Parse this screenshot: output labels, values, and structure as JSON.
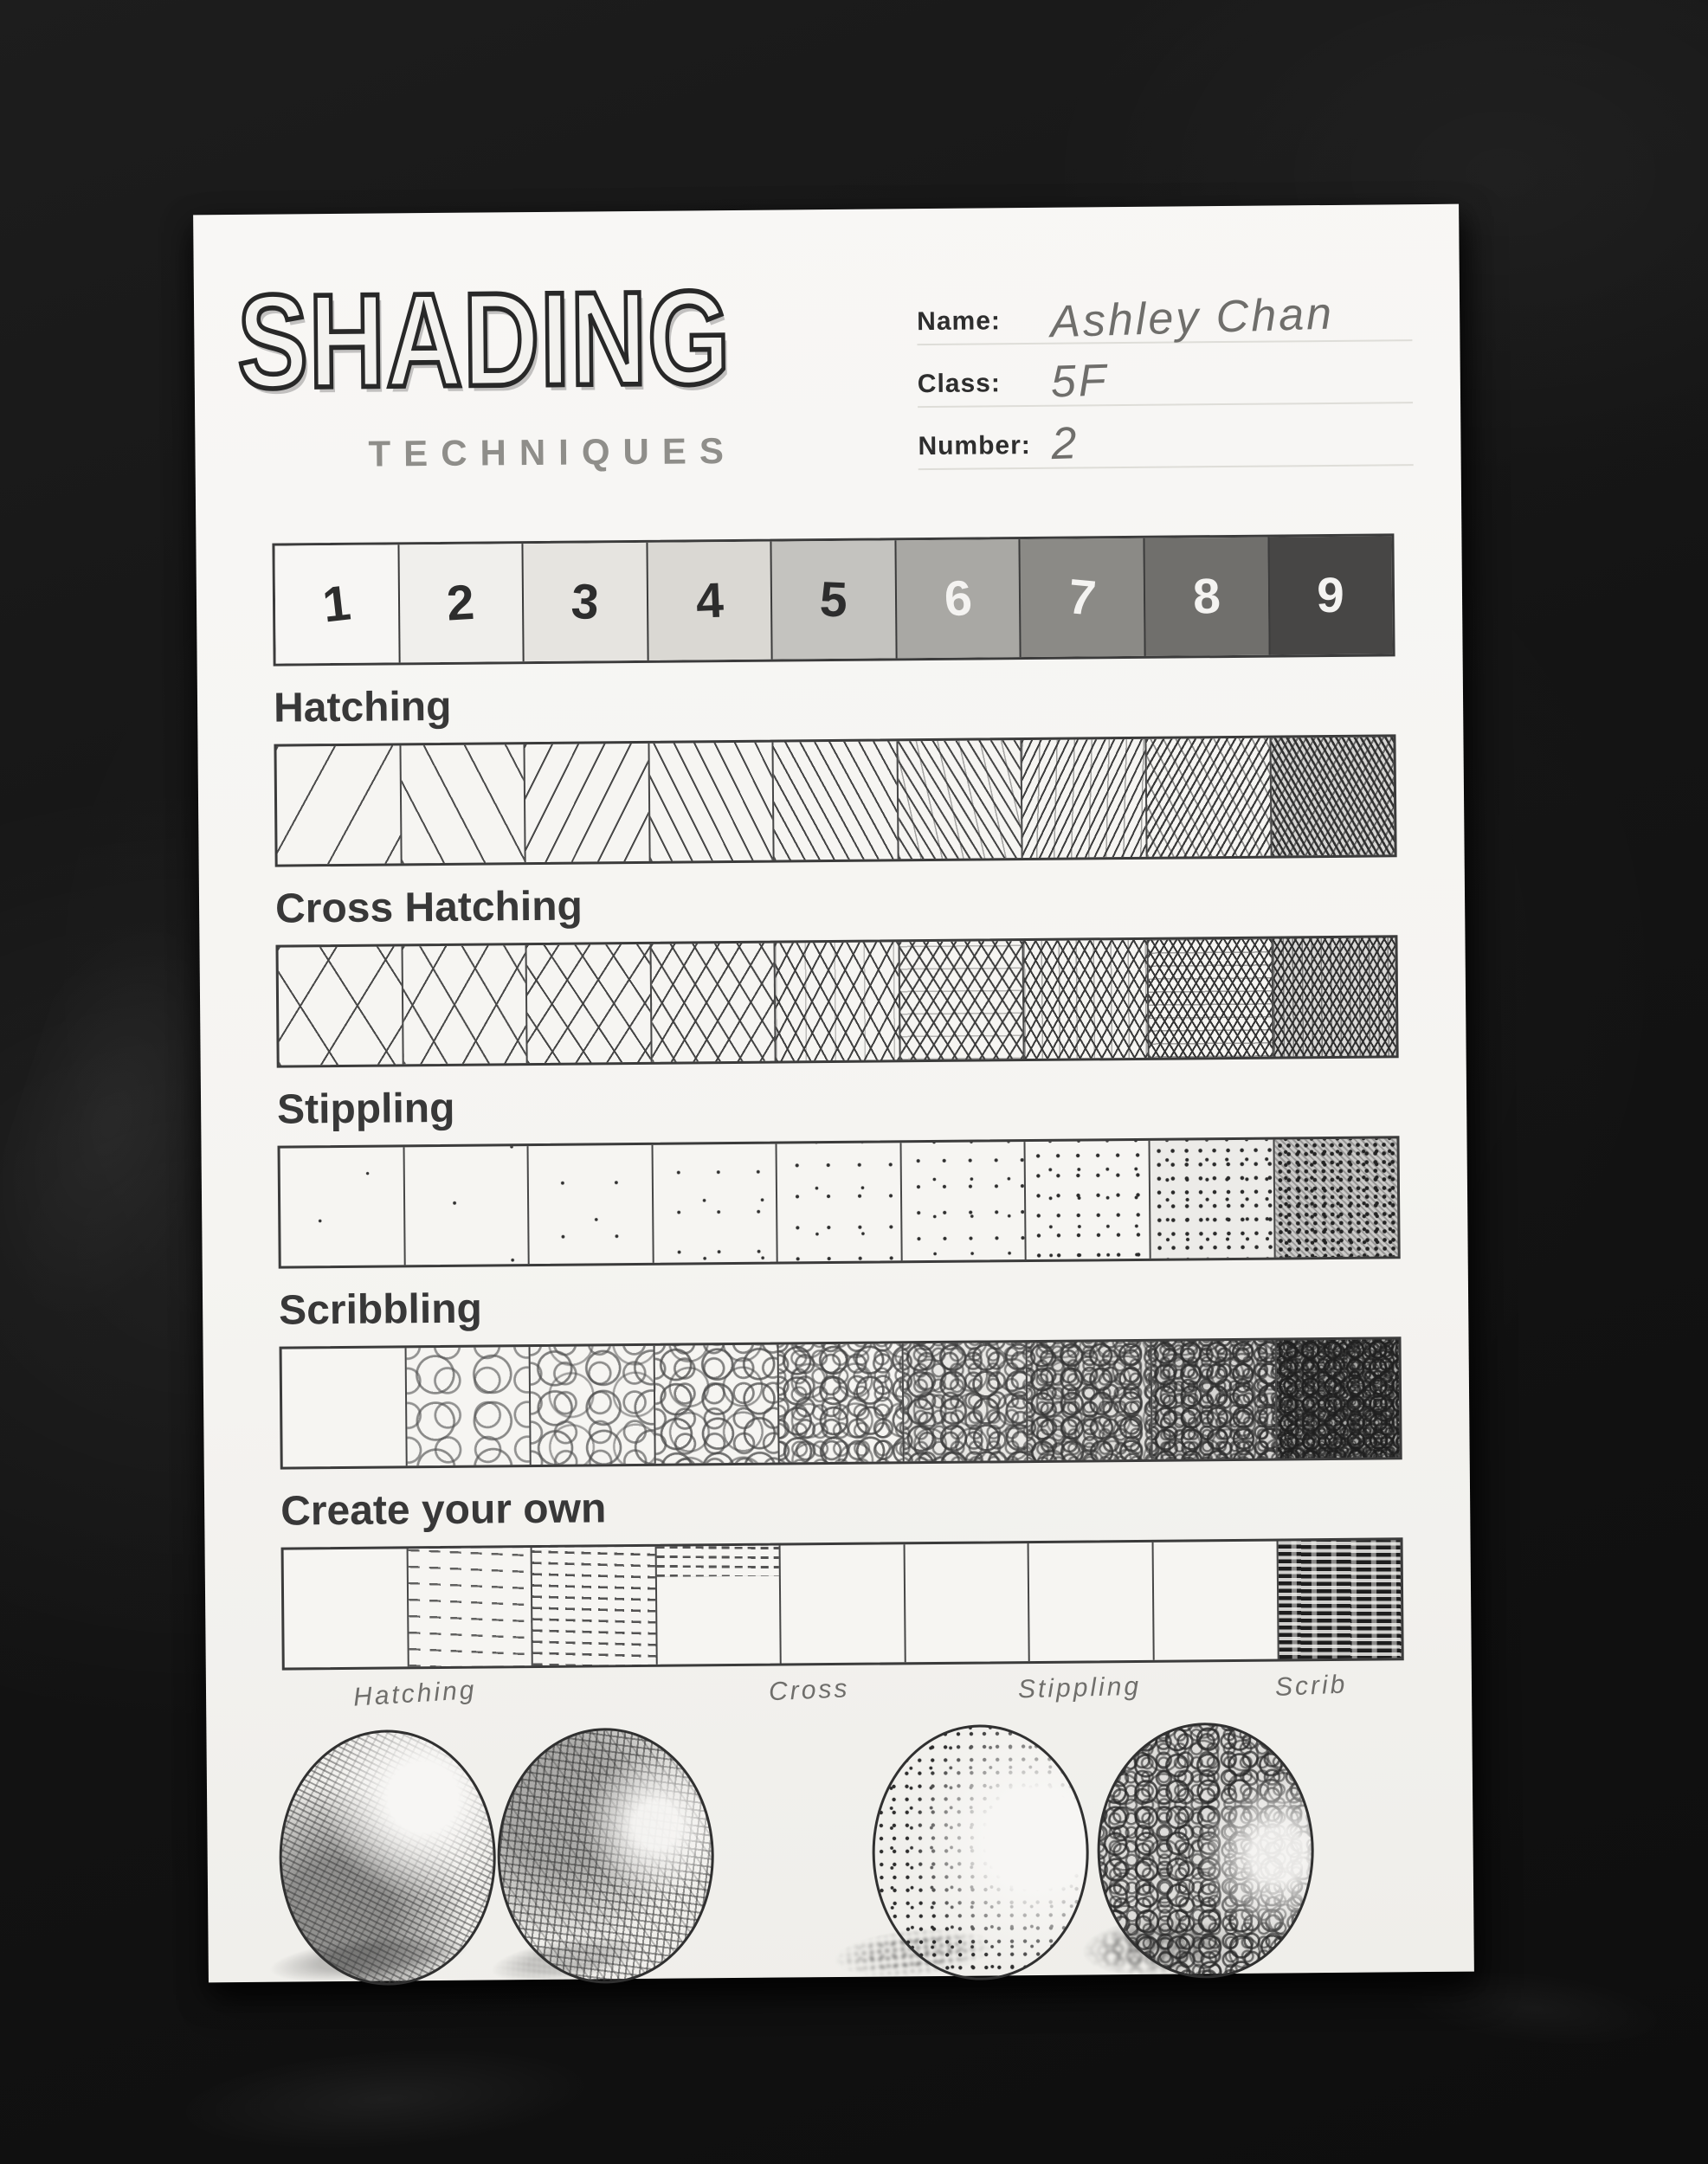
{
  "worksheet": {
    "title": "SHADING",
    "subtitle": "TECHNIQUES",
    "fields": [
      {
        "label": "Name:",
        "value": "Ashley Chan"
      },
      {
        "label": "Class:",
        "value": "5F"
      },
      {
        "label": "Number:",
        "value": "2"
      }
    ],
    "value_scale": {
      "numbers": [
        "1",
        "2",
        "3",
        "4",
        "5",
        "6",
        "7",
        "8",
        "9"
      ],
      "shades": [
        "#f7f6f4",
        "#f0efec",
        "#e6e4e0",
        "#dad8d3",
        "#c4c3bf",
        "#a9a8a4",
        "#8b8a86",
        "#706f6c",
        "#474645"
      ],
      "number_dark_color": "#2d2d2d",
      "number_light_color": "#f4f3f1"
    },
    "sections": [
      {
        "label": "Hatching"
      },
      {
        "label": "Cross Hatching"
      },
      {
        "label": "Stippling"
      },
      {
        "label": "Scribbling"
      },
      {
        "label": "Create your own"
      }
    ],
    "sphere_labels": [
      "Hatching",
      "Cross",
      "Stippling",
      "Scrib"
    ],
    "colors": {
      "paper": "#f5f4f1",
      "ink": "#2e2e2e",
      "pencil": "#6f6e6b",
      "background": "#141414"
    }
  }
}
